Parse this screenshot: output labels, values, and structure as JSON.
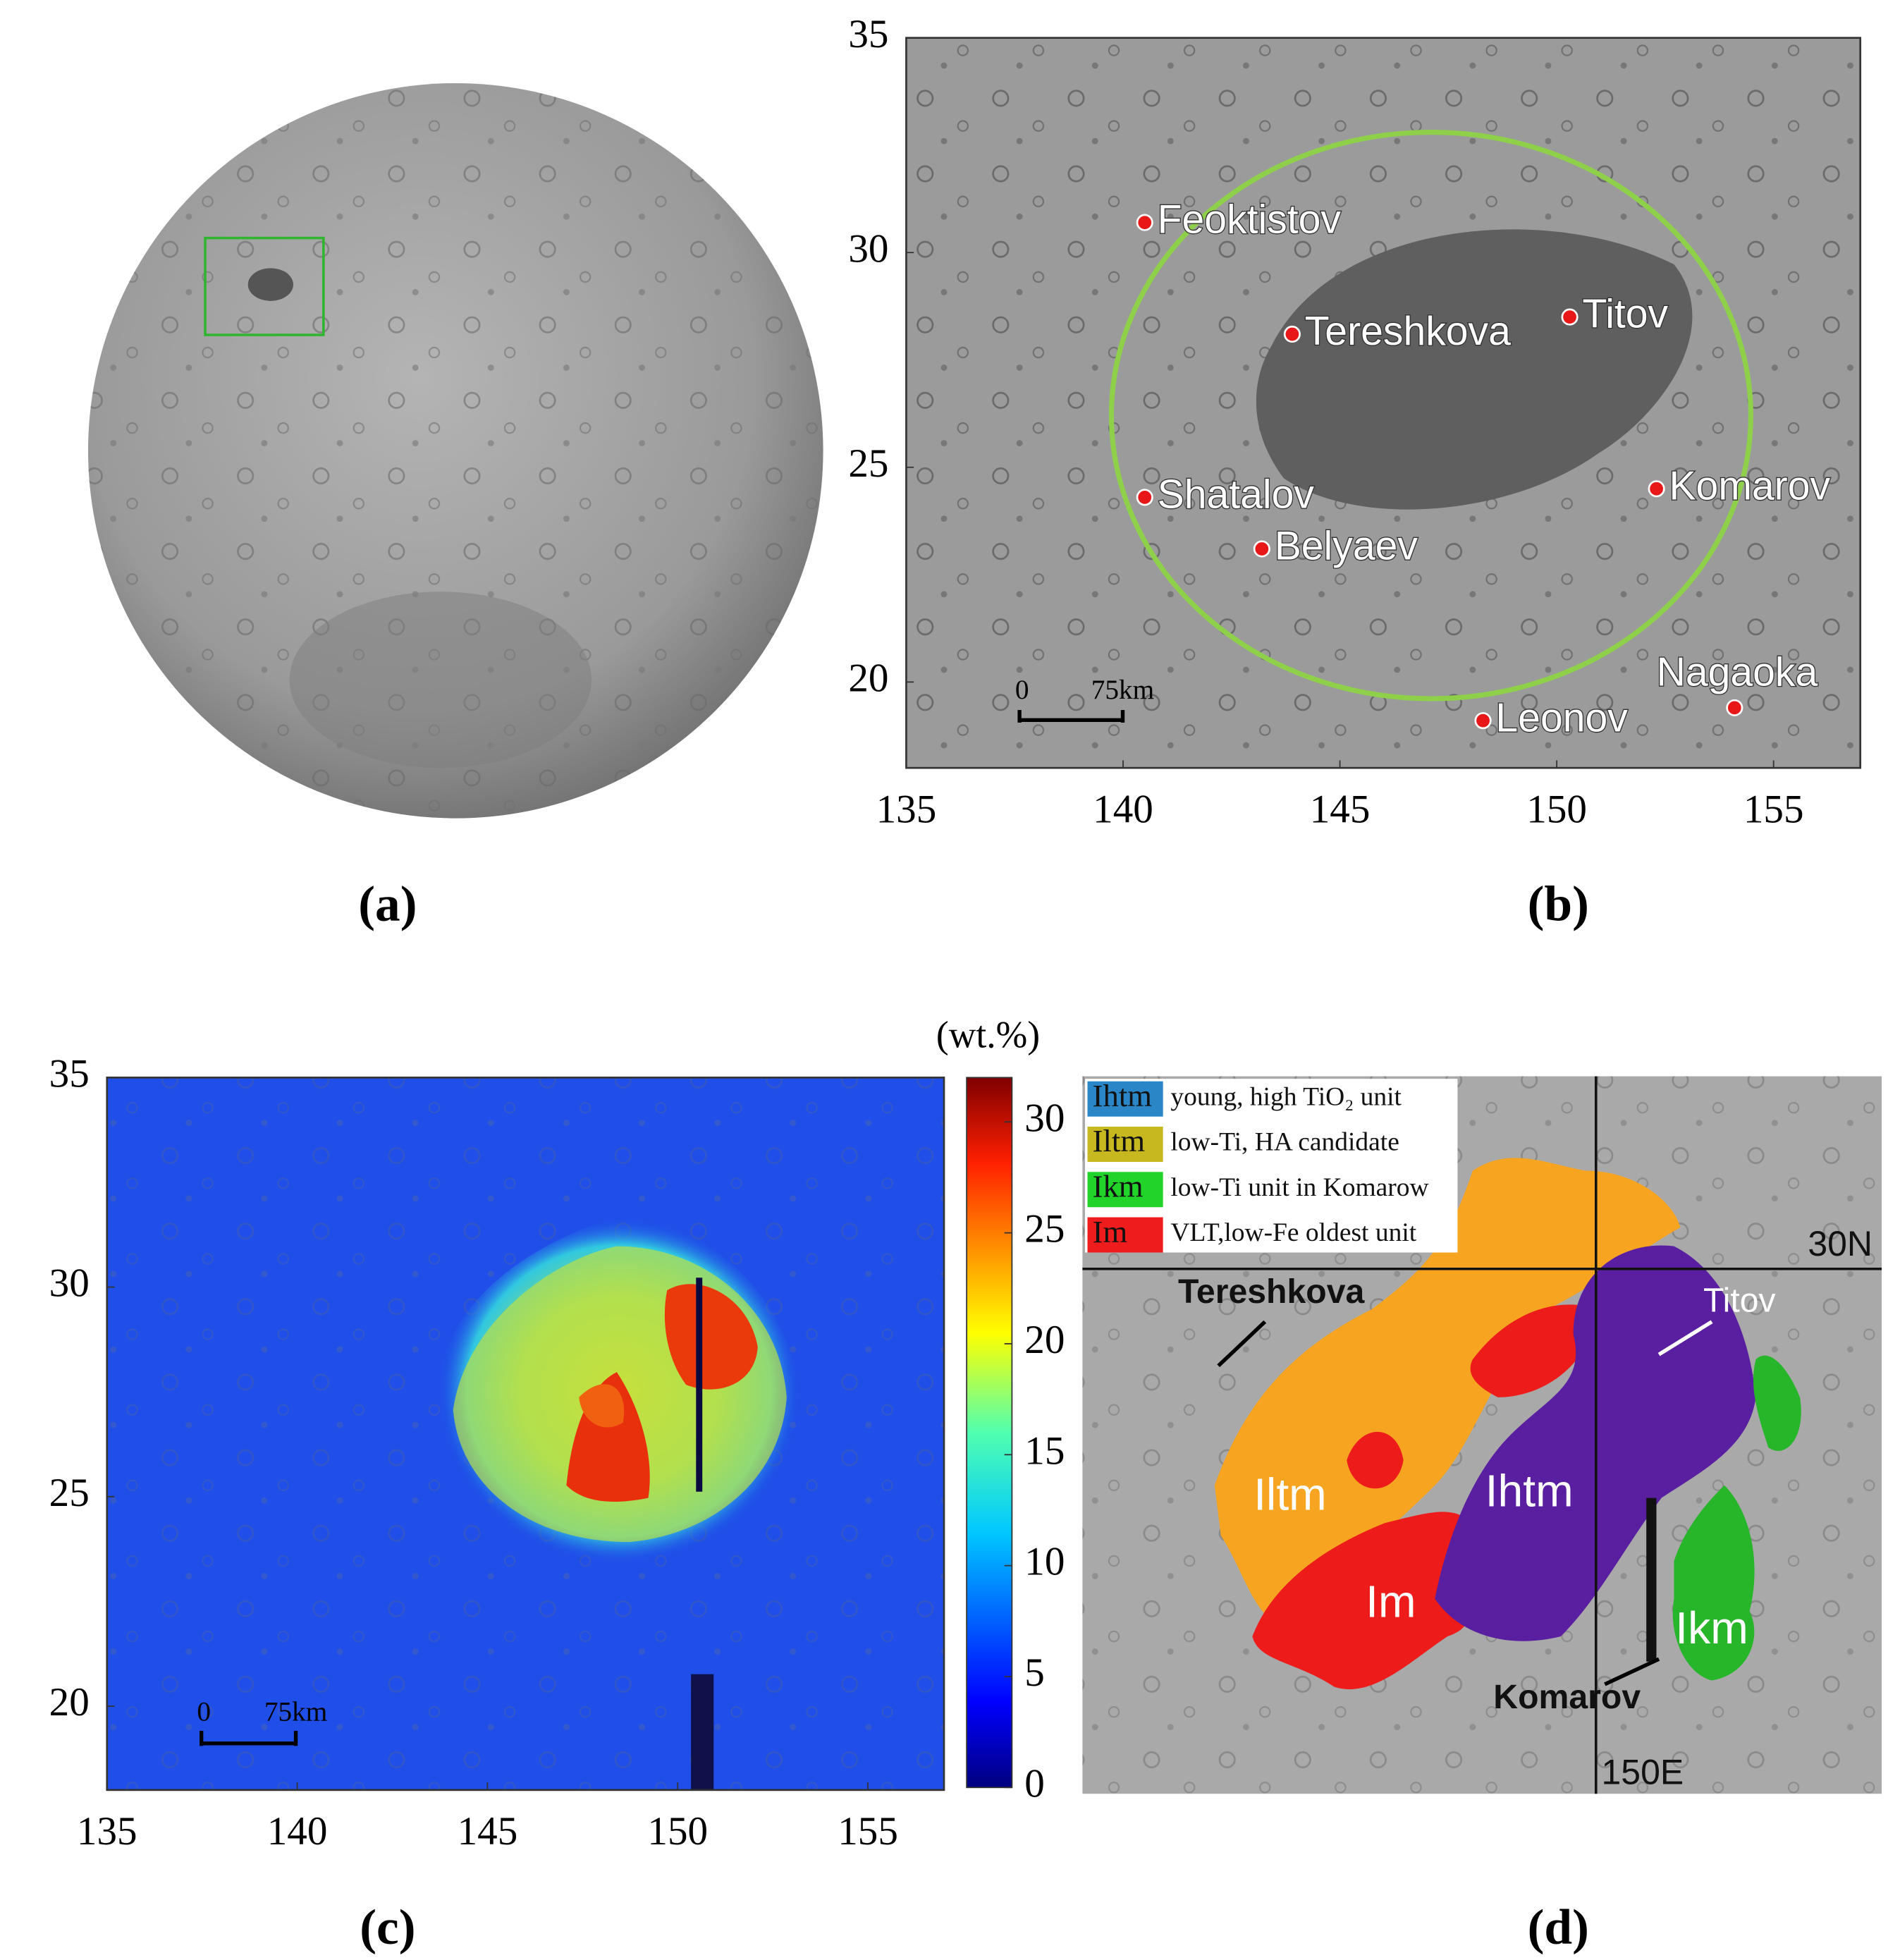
{
  "panel_labels": [
    "(a)",
    "(b)",
    "(c)",
    "(d)"
  ],
  "panel_b": {
    "xlim": [
      135,
      157
    ],
    "ylim": [
      18,
      35
    ],
    "xticks": [
      135,
      140,
      145,
      150,
      155
    ],
    "yticks": [
      20,
      25,
      30,
      35
    ],
    "scale_bar": {
      "start": "0",
      "length": "75km"
    },
    "places": [
      {
        "name": "Feoktistov",
        "lon": 140.5,
        "lat": 30.7
      },
      {
        "name": "Tereshkova",
        "lon": 143.9,
        "lat": 28.1
      },
      {
        "name": "Titov",
        "lon": 150.3,
        "lat": 28.5
      },
      {
        "name": "Shatalov",
        "lon": 140.5,
        "lat": 24.3
      },
      {
        "name": "Belyaev",
        "lon": 143.2,
        "lat": 23.1
      },
      {
        "name": "Komarov",
        "lon": 152.3,
        "lat": 24.5
      },
      {
        "name": "Nagaoka",
        "lon": 154.1,
        "lat": 19.4
      },
      {
        "name": "Leonov",
        "lon": 148.3,
        "lat": 19.1
      }
    ]
  },
  "panel_c": {
    "xlim": [
      135,
      157
    ],
    "ylim": [
      18,
      35
    ],
    "xticks": [
      135,
      140,
      145,
      150,
      155
    ],
    "yticks": [
      20,
      25,
      30,
      35
    ],
    "scale_bar": {
      "start": "0",
      "length": "75km"
    },
    "colorbar": {
      "title": "(wt.%)",
      "lim": [
        0,
        32
      ],
      "ticks": [
        0,
        5,
        10,
        15,
        20,
        25,
        30
      ]
    }
  },
  "panel_d": {
    "legend": [
      {
        "code": "Ihtm",
        "description": "young, high TiO₂ unit",
        "color": "#2b86c8"
      },
      {
        "code": "Iltm",
        "description": "low-Ti, HA candidate",
        "color": "#c8b820"
      },
      {
        "code": "Ikm",
        "description": "low-Ti unit in Komarow",
        "color": "#22d42a"
      },
      {
        "code": "Im",
        "description": "VLT,low-Fe oldest unit",
        "color": "#ee1c1c"
      }
    ],
    "units": [
      {
        "label": "Iltm",
        "color": "#f7a520"
      },
      {
        "label": "Ihtm",
        "color": "#5a1fa0"
      },
      {
        "label": "Im",
        "color": "#ee1b1b"
      },
      {
        "label": "Ikm",
        "color": "#27b52a"
      }
    ],
    "annotations": [
      "Tereshkova",
      "Titov",
      "Komarov"
    ],
    "grid_labels": [
      "30N",
      "150E"
    ]
  }
}
